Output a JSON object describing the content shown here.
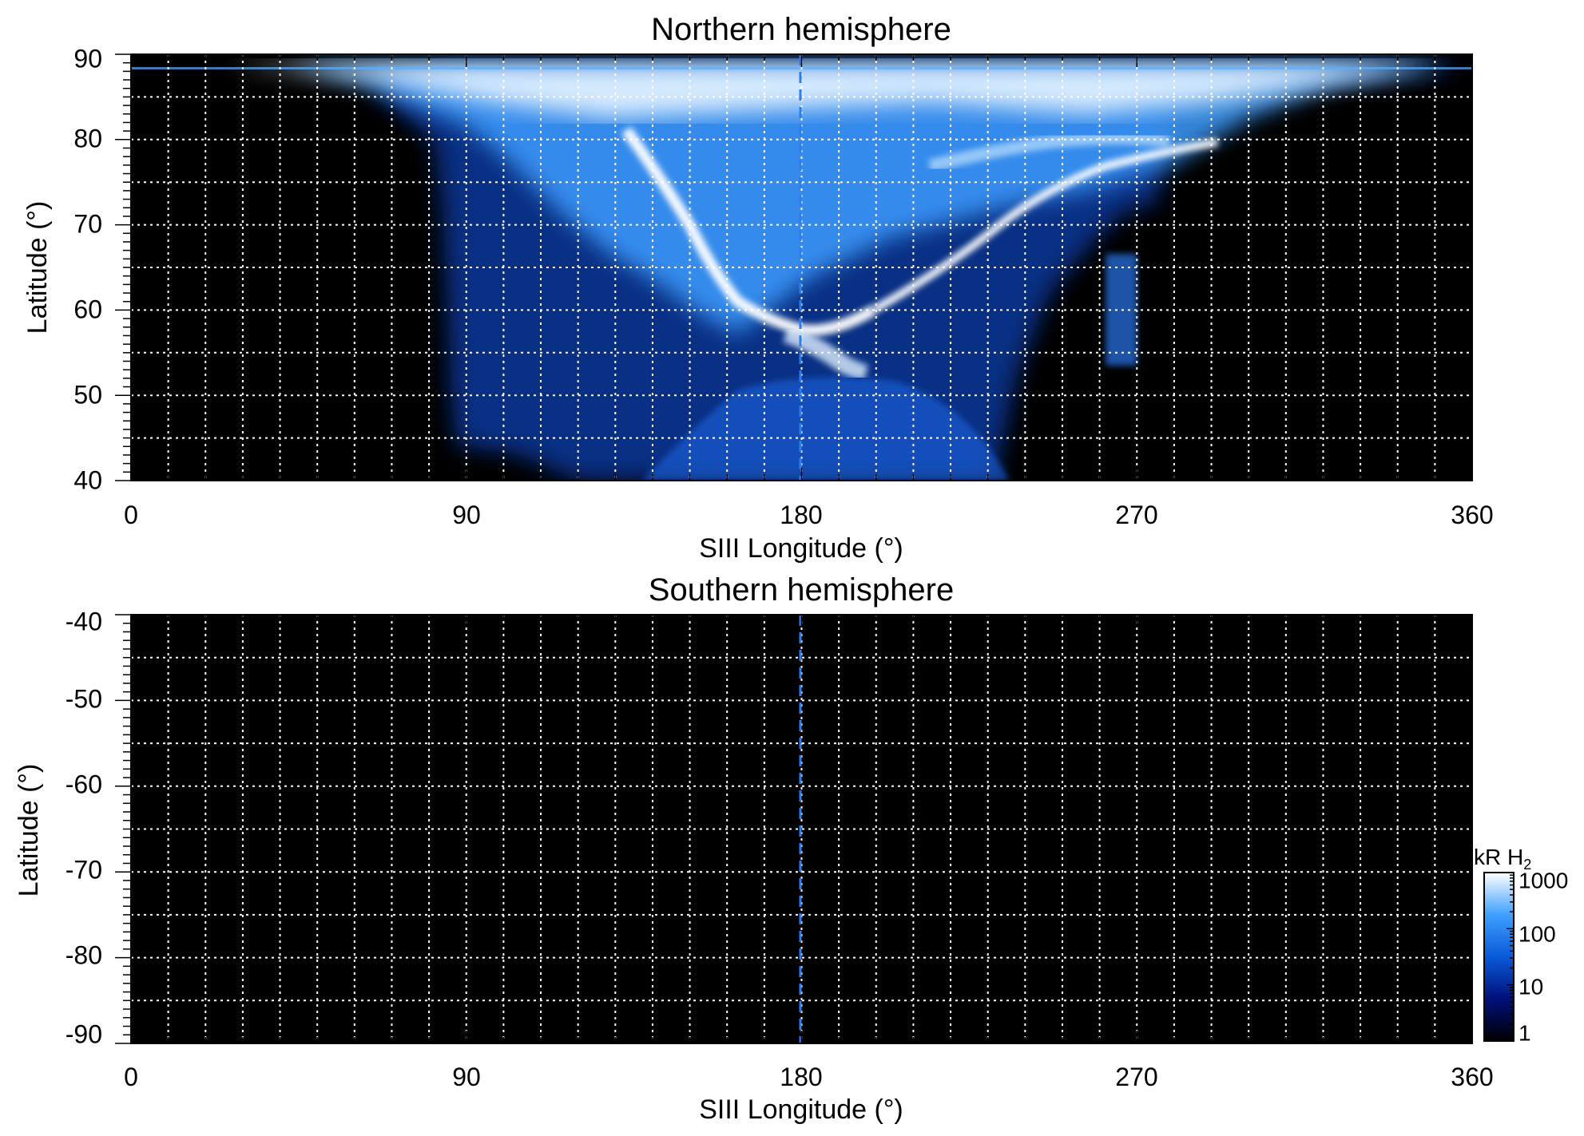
{
  "chart_data": [
    {
      "type": "heatmap",
      "title": "Northern hemisphere",
      "xlabel": "SIII Longitude (°)",
      "ylabel": "Latitude (°)",
      "xlim": [
        0,
        360
      ],
      "ylim": [
        40,
        90
      ],
      "x_ticks": [
        "0",
        "90",
        "180",
        "270",
        "360"
      ],
      "y_ticks": [
        "40",
        "50",
        "60",
        "70",
        "80",
        "90"
      ],
      "grid": "dotted",
      "background": "#000000",
      "reference_longitude": 180,
      "emission_region": {
        "longitude_range": [
          87,
          275
        ],
        "polar_cap_latitude": [
          88,
          90
        ],
        "bright_oval": {
          "dawn_arc": [
            [
              135,
              80
            ],
            [
              145,
              70
            ],
            [
              155,
              62
            ],
            [
              165,
              56
            ],
            [
              175,
              53
            ]
          ],
          "dusk_arc": [
            [
              180,
              56
            ],
            [
              200,
              62
            ],
            [
              220,
              68
            ],
            [
              245,
              75
            ],
            [
              270,
              80
            ]
          ]
        }
      }
    },
    {
      "type": "heatmap",
      "title": "Southern hemisphere",
      "xlabel": "SIII Longitude (°)",
      "ylabel": "Latitude (°)",
      "xlim": [
        0,
        360
      ],
      "ylim": [
        -90,
        -40
      ],
      "x_ticks": [
        "0",
        "90",
        "180",
        "270",
        "360"
      ],
      "y_ticks": [
        "-40",
        "-50",
        "-60",
        "-70",
        "-80",
        "-90"
      ],
      "grid": "dotted",
      "background": "#000000",
      "reference_longitude": 180
    }
  ],
  "colorbar": {
    "title": "kR H",
    "title_subscript": "2",
    "scale": "log",
    "range": [
      1,
      1000
    ],
    "ticks": [
      "1000",
      "100",
      "10",
      "1"
    ],
    "colors": [
      "#000000",
      "#00107a",
      "#0a5ad8",
      "#3ea0ff",
      "#ffffff"
    ]
  }
}
